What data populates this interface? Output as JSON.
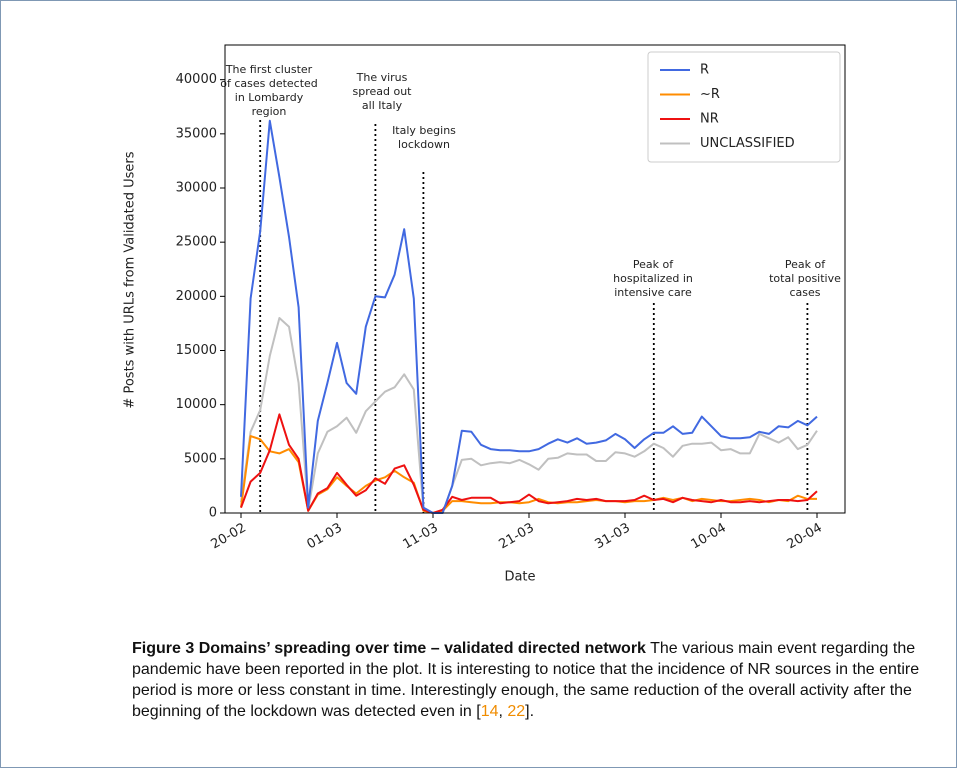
{
  "chart_data": {
    "type": "line",
    "xlabel": "Date",
    "ylabel": "# Posts with URLs from Validated Users",
    "categories": [
      "20-02",
      null,
      null,
      null,
      null,
      null,
      null,
      null,
      null,
      null,
      "01-03",
      null,
      null,
      null,
      null,
      null,
      null,
      null,
      null,
      null,
      "11-03",
      null,
      null,
      null,
      null,
      null,
      null,
      null,
      null,
      null,
      "21-03",
      null,
      null,
      null,
      null,
      null,
      null,
      null,
      null,
      null,
      "31-03",
      null,
      null,
      null,
      null,
      null,
      null,
      null,
      null,
      null,
      "10-04",
      null,
      null,
      null,
      null,
      null,
      null,
      null,
      null,
      null,
      "20-04"
    ],
    "ylim": [
      0,
      43200
    ],
    "yticks": [
      0,
      5000,
      10000,
      15000,
      20000,
      25000,
      30000,
      35000,
      40000
    ],
    "legend": "upper right",
    "series": [
      {
        "name": "R",
        "color": "#4169e1",
        "values": [
          1500,
          19800,
          26000,
          36200,
          31000,
          25500,
          19000,
          500,
          8500,
          12000,
          15700,
          12000,
          11000,
          17200,
          20000,
          19900,
          22000,
          26200,
          19800,
          500,
          0,
          0,
          2500,
          7600,
          7500,
          6300,
          5900,
          5800,
          5800,
          5700,
          5700,
          5900,
          6400,
          6800,
          6500,
          6900,
          6400,
          6500,
          6700,
          7300,
          6800,
          6000,
          6800,
          7400,
          7400,
          8000,
          7300,
          7400,
          8900,
          8000,
          7100,
          6900,
          6900,
          7000,
          7500,
          7300,
          8000,
          7900,
          8500,
          8100,
          8900
        ]
      },
      {
        "name": "~R",
        "color": "#ff8c00",
        "values": [
          500,
          7100,
          6800,
          5700,
          5500,
          5900,
          4700,
          200,
          1700,
          2200,
          3300,
          2500,
          1800,
          2500,
          3000,
          3300,
          3900,
          3300,
          2800,
          200,
          0,
          200,
          1100,
          1100,
          1000,
          900,
          900,
          1000,
          1000,
          900,
          1000,
          1300,
          1000,
          900,
          1000,
          1000,
          1100,
          1200,
          1100,
          1100,
          1000,
          1100,
          1100,
          1200,
          1400,
          1200,
          1400,
          1100,
          1300,
          1200,
          1100,
          1100,
          1200,
          1300,
          1200,
          1000,
          1200,
          1100,
          1600,
          1300,
          1300
        ]
      },
      {
        "name": "NR",
        "color": "#ee1111",
        "values": [
          500,
          2900,
          3700,
          5800,
          9100,
          6300,
          5000,
          200,
          1800,
          2300,
          3700,
          2600,
          1600,
          2100,
          3200,
          2700,
          4100,
          4400,
          2600,
          300,
          0,
          300,
          1500,
          1200,
          1400,
          1400,
          1400,
          900,
          1000,
          1100,
          1700,
          1100,
          900,
          1000,
          1100,
          1300,
          1200,
          1300,
          1100,
          1100,
          1100,
          1200,
          1600,
          1200,
          1300,
          1000,
          1400,
          1200,
          1100,
          1000,
          1200,
          1000,
          1000,
          1100,
          1000,
          1100,
          1200,
          1200,
          1100,
          1200,
          2000
        ]
      },
      {
        "name": "UNCLASSIFIED",
        "color": "#c0c0c0",
        "values": [
          1000,
          7500,
          9500,
          14500,
          18000,
          17200,
          12000,
          300,
          5500,
          7500,
          8000,
          8800,
          7400,
          9400,
          10300,
          11200,
          11600,
          12800,
          11400,
          300,
          0,
          0,
          2500,
          4900,
          5000,
          4400,
          4600,
          4700,
          4600,
          4900,
          4500,
          4000,
          5000,
          5100,
          5500,
          5400,
          5400,
          4800,
          4800,
          5600,
          5500,
          5200,
          5700,
          6400,
          6000,
          5200,
          6200,
          6400,
          6400,
          6500,
          5800,
          5900,
          5500,
          5500,
          7300,
          6900,
          6500,
          7000,
          5900,
          6300,
          7600
        ]
      }
    ],
    "annotations": [
      [
        "The first cluster",
        "of cases detected",
        "in Lombardy",
        "region"
      ],
      [
        "The virus",
        "spread out",
        "all Italy"
      ],
      [
        "Italy begins",
        "lockdown"
      ],
      [
        "Peak of",
        "hospitalized in",
        "intensive care"
      ],
      [
        "Peak of",
        "total positive",
        "cases"
      ]
    ]
  },
  "caption": {
    "label": "Figure 3",
    "title": "Domains’ spreading over time – validated directed network",
    "text": "The various main event regarding the pandemic have been reported in the plot. It is interesting to notice that the incidence of NR sources in the entire period is more or less constant in time. Interestingly enough, the same reduction of the overall activity after the beginning of the lockdown was detected even in [",
    "refs": [
      "14",
      "22"
    ],
    "separator": ", ",
    "end": "]."
  }
}
